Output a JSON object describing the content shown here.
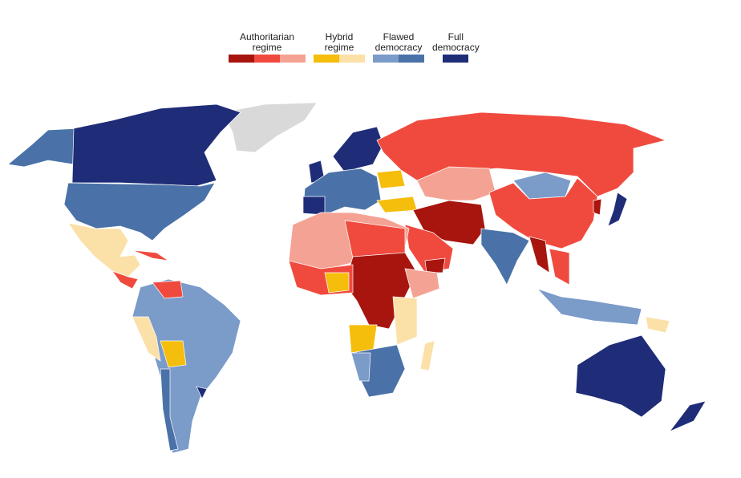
{
  "legend": {
    "groups": [
      {
        "lines": [
          "Authoritarian",
          "regime"
        ],
        "colors": [
          "#a8150f",
          "#f04a3f",
          "#f4a293"
        ]
      },
      {
        "lines": [
          "Hybrid",
          "regime"
        ],
        "colors": [
          "#f5bd0c",
          "#fbe0a8"
        ]
      },
      {
        "lines": [
          "Flawed",
          "democracy"
        ],
        "colors": [
          "#7b9bc9",
          "#4a72a8"
        ]
      },
      {
        "lines": [
          "Full",
          "democracy"
        ],
        "colors": [
          "#1f2d78"
        ]
      }
    ]
  }
}
